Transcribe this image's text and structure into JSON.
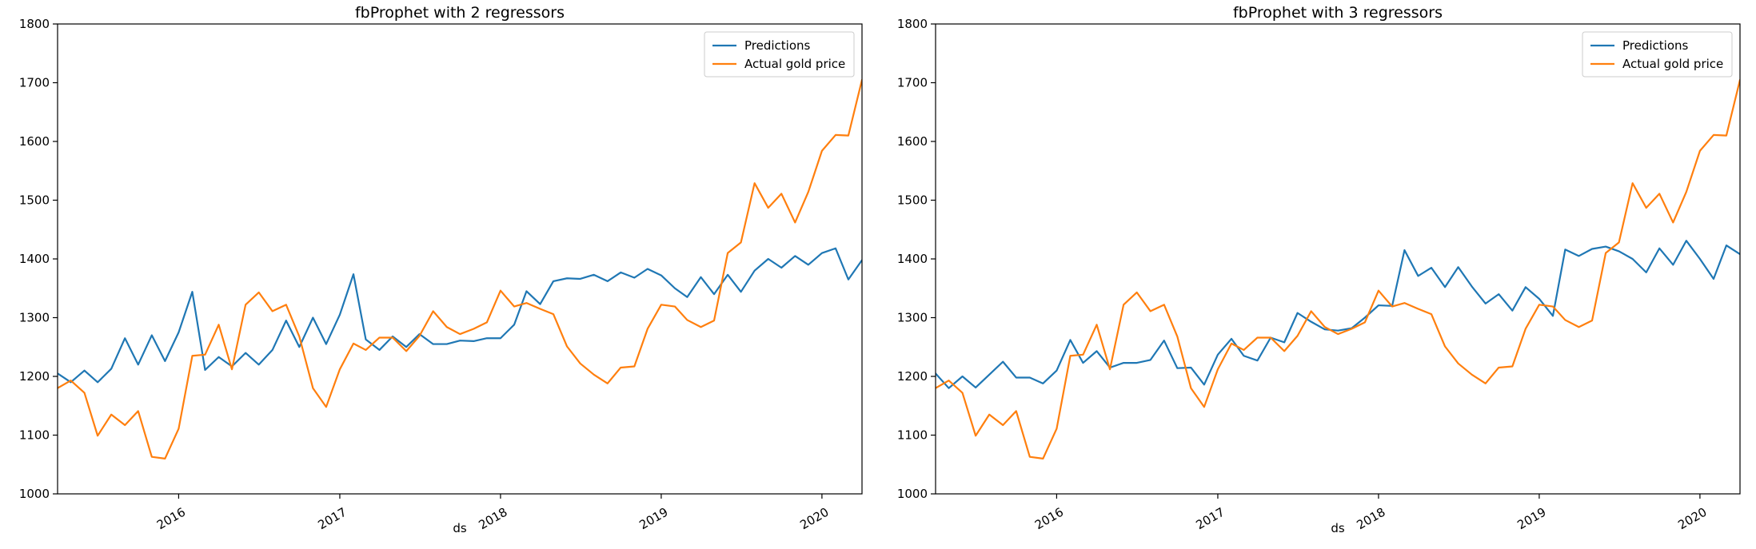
{
  "colors": {
    "predictions": "#1f77b4",
    "actual": "#ff7f0e"
  },
  "chart_data": [
    {
      "type": "line",
      "title": "fbProphet with 2 regressors",
      "xlabel": "ds",
      "ylabel": "",
      "ylim": [
        1000,
        1800
      ],
      "xlim": [
        "2015-04-01",
        "2020-04-01"
      ],
      "yticks": [
        1000,
        1100,
        1200,
        1300,
        1400,
        1500,
        1600,
        1700,
        1800
      ],
      "xticks": [
        "2016",
        "2017",
        "2018",
        "2019",
        "2020"
      ],
      "legend": "top-right",
      "grid": false,
      "x": [
        "2015-04",
        "2015-05",
        "2015-06",
        "2015-07",
        "2015-08",
        "2015-09",
        "2015-10",
        "2015-11",
        "2015-12",
        "2016-01",
        "2016-02",
        "2016-03",
        "2016-04",
        "2016-05",
        "2016-06",
        "2016-07",
        "2016-08",
        "2016-09",
        "2016-10",
        "2016-11",
        "2016-12",
        "2017-01",
        "2017-02",
        "2017-03",
        "2017-04",
        "2017-05",
        "2017-06",
        "2017-07",
        "2017-08",
        "2017-09",
        "2017-10",
        "2017-11",
        "2017-12",
        "2018-01",
        "2018-02",
        "2018-03",
        "2018-04",
        "2018-05",
        "2018-06",
        "2018-07",
        "2018-08",
        "2018-09",
        "2018-10",
        "2018-11",
        "2018-12",
        "2019-01",
        "2019-02",
        "2019-03",
        "2019-04",
        "2019-05",
        "2019-06",
        "2019-07",
        "2019-08",
        "2019-09",
        "2019-10",
        "2019-11",
        "2019-12",
        "2020-01",
        "2020-02",
        "2020-03",
        "2020-04"
      ],
      "series": [
        {
          "name": "Predictions",
          "color": "#1f77b4",
          "values": [
            1205,
            1190,
            1210,
            1190,
            1213,
            1265,
            1220,
            1270,
            1226,
            1275,
            1344,
            1211,
            1233,
            1217,
            1240,
            1220,
            1245,
            1295,
            1250,
            1300,
            1255,
            1305,
            1374,
            1263,
            1245,
            1268,
            1250,
            1272,
            1255,
            1255,
            1261,
            1260,
            1265,
            1265,
            1288,
            1345,
            1323,
            1362,
            1367,
            1366,
            1373,
            1362,
            1377,
            1368,
            1383,
            1372,
            1350,
            1335,
            1369,
            1340,
            1373,
            1344,
            1380,
            1400,
            1385,
            1405,
            1390,
            1410,
            1418,
            1365,
            1398
          ]
        },
        {
          "name": "Actual gold price",
          "color": "#ff7f0e",
          "values": [
            1180,
            1193,
            1172,
            1099,
            1135,
            1117,
            1141,
            1063,
            1060,
            1111,
            1235,
            1237,
            1288,
            1212,
            1322,
            1343,
            1311,
            1322,
            1268,
            1180,
            1148,
            1212,
            1256,
            1245,
            1266,
            1266,
            1243,
            1269,
            1311,
            1284,
            1272,
            1281,
            1292,
            1346,
            1319,
            1325,
            1315,
            1306,
            1251,
            1222,
            1203,
            1188,
            1215,
            1217,
            1281,
            1322,
            1319,
            1296,
            1284,
            1295,
            1410,
            1428,
            1529,
            1487,
            1511,
            1462,
            1514,
            1584,
            1611,
            1610,
            1705
          ]
        }
      ]
    },
    {
      "type": "line",
      "title": "fbProphet with 3 regressors",
      "xlabel": "ds",
      "ylabel": "",
      "ylim": [
        1000,
        1800
      ],
      "xlim": [
        "2015-04-01",
        "2020-04-01"
      ],
      "yticks": [
        1000,
        1100,
        1200,
        1300,
        1400,
        1500,
        1600,
        1700,
        1800
      ],
      "xticks": [
        "2016",
        "2017",
        "2018",
        "2019",
        "2020"
      ],
      "legend": "top-right",
      "grid": false,
      "x": [
        "2015-04",
        "2015-05",
        "2015-06",
        "2015-07",
        "2015-08",
        "2015-09",
        "2015-10",
        "2015-11",
        "2015-12",
        "2016-01",
        "2016-02",
        "2016-03",
        "2016-04",
        "2016-05",
        "2016-06",
        "2016-07",
        "2016-08",
        "2016-09",
        "2016-10",
        "2016-11",
        "2016-12",
        "2017-01",
        "2017-02",
        "2017-03",
        "2017-04",
        "2017-05",
        "2017-06",
        "2017-07",
        "2017-08",
        "2017-09",
        "2017-10",
        "2017-11",
        "2017-12",
        "2018-01",
        "2018-02",
        "2018-03",
        "2018-04",
        "2018-05",
        "2018-06",
        "2018-07",
        "2018-08",
        "2018-09",
        "2018-10",
        "2018-11",
        "2018-12",
        "2019-01",
        "2019-02",
        "2019-03",
        "2019-04",
        "2019-05",
        "2019-06",
        "2019-07",
        "2019-08",
        "2019-09",
        "2019-10",
        "2019-11",
        "2019-12",
        "2020-01",
        "2020-02",
        "2020-03",
        "2020-04"
      ],
      "series": [
        {
          "name": "Predictions",
          "color": "#1f77b4",
          "values": [
            1205,
            1180,
            1200,
            1181,
            1203,
            1225,
            1198,
            1198,
            1188,
            1210,
            1262,
            1223,
            1243,
            1215,
            1223,
            1223,
            1228,
            1261,
            1214,
            1215,
            1186,
            1237,
            1264,
            1235,
            1227,
            1266,
            1258,
            1308,
            1293,
            1280,
            1278,
            1282,
            1300,
            1321,
            1320,
            1415,
            1371,
            1385,
            1352,
            1386,
            1353,
            1324,
            1340,
            1312,
            1352,
            1332,
            1303,
            1416,
            1405,
            1417,
            1421,
            1413,
            1400,
            1377,
            1418,
            1390,
            1431,
            1400,
            1366,
            1423,
            1408
          ]
        },
        {
          "name": "Actual gold price",
          "color": "#ff7f0e",
          "values": [
            1180,
            1193,
            1172,
            1099,
            1135,
            1117,
            1141,
            1063,
            1060,
            1111,
            1235,
            1237,
            1288,
            1212,
            1322,
            1343,
            1311,
            1322,
            1268,
            1180,
            1148,
            1212,
            1256,
            1245,
            1266,
            1266,
            1243,
            1269,
            1311,
            1284,
            1272,
            1281,
            1292,
            1346,
            1319,
            1325,
            1315,
            1306,
            1251,
            1222,
            1203,
            1188,
            1215,
            1217,
            1281,
            1322,
            1319,
            1296,
            1284,
            1295,
            1410,
            1428,
            1529,
            1487,
            1511,
            1462,
            1514,
            1584,
            1611,
            1610,
            1705
          ]
        }
      ]
    }
  ]
}
